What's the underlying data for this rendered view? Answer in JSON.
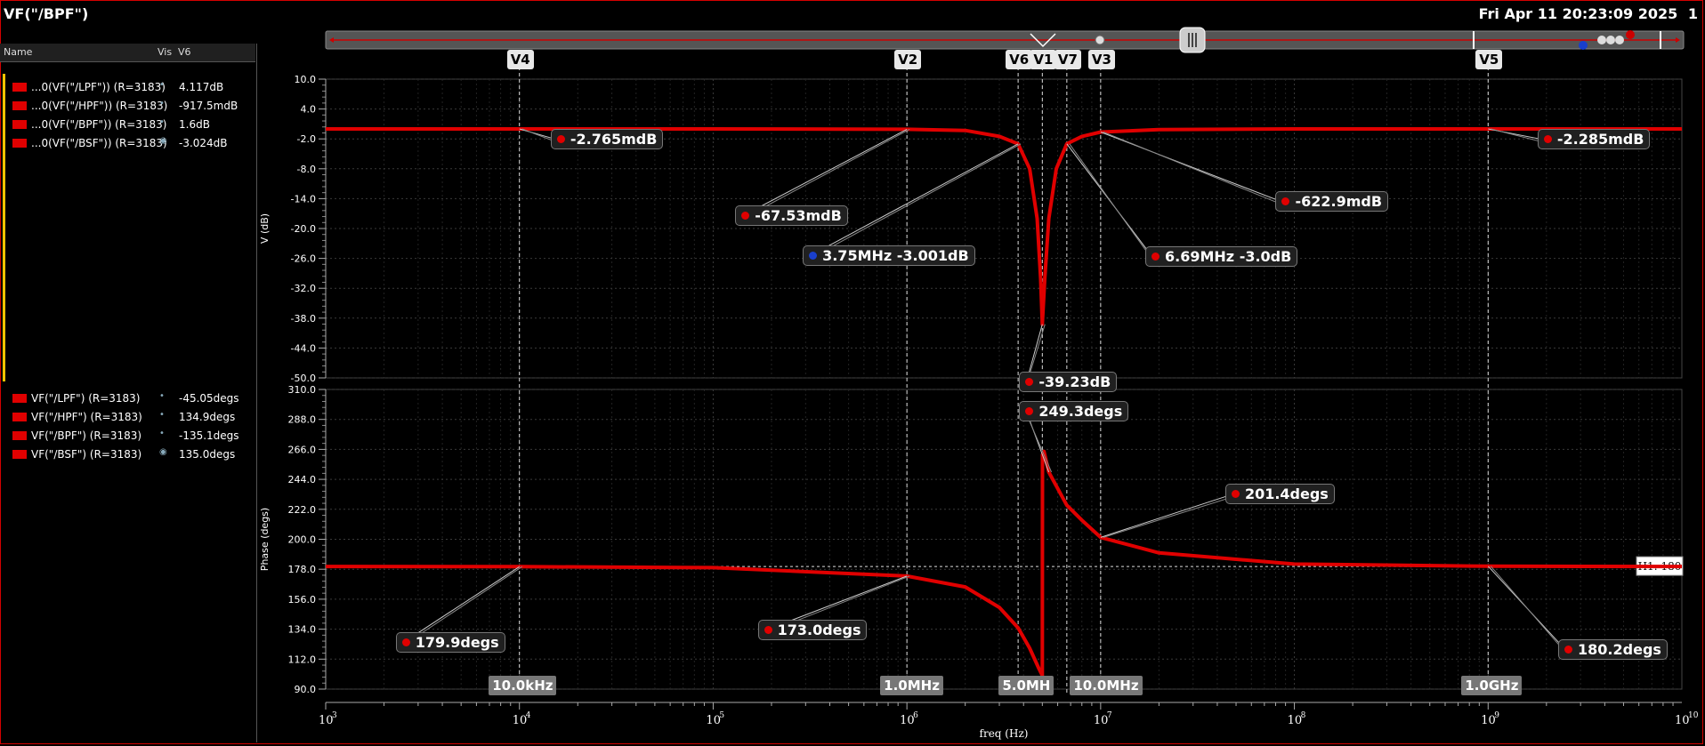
{
  "window": {
    "title": "VF(\"/BPF\")",
    "datetime": "Fri Apr 11 20:23:09 2025",
    "index": "1"
  },
  "legend": {
    "headers": {
      "name": "Name",
      "vis": "Vis",
      "value": "V6"
    },
    "magnitude": [
      {
        "name": "...0(VF(\"/LPF\")) (R=3183)",
        "value": "4.117dB",
        "visible": false
      },
      {
        "name": "...0(VF(\"/HPF\")) (R=3183)",
        "value": "-917.5mdB",
        "visible": false
      },
      {
        "name": "...0(VF(\"/BPF\")) (R=3183)",
        "value": "1.6dB",
        "visible": false
      },
      {
        "name": "...0(VF(\"/BSF\")) (R=3183)",
        "value": "-3.024dB",
        "visible": true
      }
    ],
    "phase": [
      {
        "name": "VF(\"/LPF\") (R=3183)",
        "value": "-45.05degs",
        "visible": false
      },
      {
        "name": "VF(\"/HPF\") (R=3183)",
        "value": "134.9degs",
        "visible": false
      },
      {
        "name": "VF(\"/BPF\") (R=3183)",
        "value": "-135.1degs",
        "visible": false
      },
      {
        "name": "VF(\"/BSF\") (R=3183)",
        "value": "135.0degs",
        "visible": true
      }
    ]
  },
  "colors": {
    "trace": "#e00000",
    "background": "#000000",
    "grid": "#3a3a3a",
    "frame": "#d40000"
  },
  "chart_data": [
    {
      "type": "line",
      "series": [
        {
          "values": [
            [
              1000,
              -0.003
            ],
            [
              10000,
              -0.003
            ],
            [
              100000,
              -0.003
            ],
            [
              1000000,
              -0.068
            ],
            [
              2000000,
              -0.3
            ],
            [
              3000000,
              -1.5
            ],
            [
              3750000,
              -3.001
            ],
            [
              4300000,
              -8
            ],
            [
              4700000,
              -18
            ],
            [
              4900000,
              -30
            ],
            [
              5000000,
              -39.23
            ],
            [
              5150000,
              -30
            ],
            [
              5400000,
              -18
            ],
            [
              5900000,
              -8
            ],
            [
              6690000,
              -3.0
            ],
            [
              8000000,
              -1.5
            ],
            [
              10000000,
              -0.623
            ],
            [
              20000000,
              -0.15
            ],
            [
              100000000,
              -0.003
            ],
            [
              1000000000,
              -0.002
            ],
            [
              10000000000,
              -0.002
            ]
          ]
        }
      ],
      "xlabel": "freq (Hz)",
      "ylabel": "V (dB)",
      "xscale": "log",
      "xlim": [
        1000,
        10000000000
      ],
      "ylim": [
        -50,
        10
      ],
      "yticks": [
        "10.0",
        "4.0",
        "-2.0",
        "-8.0",
        "-14.0",
        "-20.0",
        "-26.0",
        "-32.0",
        "-38.0",
        "-44.0",
        "-50.0"
      ],
      "grid": true
    },
    {
      "type": "line",
      "series": [
        {
          "values": [
            [
              1000,
              180
            ],
            [
              10000,
              179.9
            ],
            [
              100000,
              179.2
            ],
            [
              1000000,
              173.0
            ],
            [
              2000000,
              165
            ],
            [
              3000000,
              150
            ],
            [
              3750000,
              135
            ],
            [
              4300000,
              120
            ],
            [
              4800000,
              105
            ],
            [
              5000000,
              100
            ],
            [
              5010000,
              262
            ],
            [
              5100000,
              264.5
            ],
            [
              5400000,
              249.3
            ],
            [
              6690000,
              225
            ],
            [
              8000000,
              214
            ],
            [
              10000000,
              201.4
            ],
            [
              20000000,
              190
            ],
            [
              100000000,
              181.8
            ],
            [
              1000000000,
              180.2
            ],
            [
              10000000000,
              180
            ]
          ]
        }
      ],
      "xlabel": "freq (Hz)",
      "ylabel": "Phase (degs)",
      "xscale": "log",
      "xlim": [
        1000,
        10000000000
      ],
      "ylim": [
        90,
        310
      ],
      "yticks": [
        "310.0",
        "288.0",
        "266.0",
        "244.0",
        "222.0",
        "200.0",
        "178.0",
        "156.0",
        "134.0",
        "112.0",
        "90.0"
      ],
      "grid": true,
      "hline": {
        "label": "H1: 180",
        "value": 180
      }
    }
  ],
  "xaxis": {
    "tick_labels": [
      {
        "base": "10",
        "exp": "3",
        "x": 1000
      },
      {
        "base": "10",
        "exp": "4",
        "x": 10000
      },
      {
        "base": "10",
        "exp": "5",
        "x": 100000
      },
      {
        "base": "10",
        "exp": "6",
        "x": 1000000
      },
      {
        "base": "10",
        "exp": "7",
        "x": 10000000
      },
      {
        "base": "10",
        "exp": "8",
        "x": 100000000
      },
      {
        "base": "10",
        "exp": "9",
        "x": 1000000000
      },
      {
        "base": "10",
        "exp": "10",
        "x": 10000000000
      }
    ],
    "freq_tags": [
      {
        "text": "10.0kHz",
        "x": 10000
      },
      {
        "text": "1.0MHz",
        "x": 1000000
      },
      {
        "text": "5.0MH",
        "x": 5000000
      },
      {
        "text": "10.0MHz",
        "x": 10000000
      },
      {
        "text": "1.0GHz",
        "x": 1000000000
      }
    ]
  },
  "markers": [
    {
      "name": "V4",
      "x": 10000
    },
    {
      "name": "V2",
      "x": 1000000
    },
    {
      "name": "V6",
      "x": 3750000
    },
    {
      "name": "V1",
      "x": 5000000
    },
    {
      "name": "V7",
      "x": 6690000
    },
    {
      "name": "V3",
      "x": 10000000
    },
    {
      "name": "V5",
      "x": 1000000000
    }
  ],
  "annotations": {
    "magnitude": [
      {
        "text": "-2.765mdB",
        "x": 10000,
        "y": -0.003,
        "lx": 14500,
        "ly": -2.2,
        "dot": "red"
      },
      {
        "text": "-67.53mdB",
        "x": 1000000,
        "y": -0.068,
        "lx": 130000,
        "ly": -17.5,
        "dot": "red"
      },
      {
        "text": "3.75MHz -3.001dB",
        "x": 3750000,
        "y": -3.001,
        "lx": 290000,
        "ly": -25.5,
        "dot": "B"
      },
      {
        "text": "-39.23dB",
        "x": 5000000,
        "y": -39.23,
        "lx": 3800000,
        "ly": -50,
        "dot": "red",
        "pane": "phase-top"
      },
      {
        "text": "6.69MHz -3.0dB",
        "x": 6690000,
        "y": -3.0,
        "lx": 17000000,
        "ly": -25.7,
        "dot": "A"
      },
      {
        "text": "-622.9mdB",
        "x": 10000000,
        "y": -0.623,
        "lx": 80000000,
        "ly": -14.7,
        "dot": "red"
      },
      {
        "text": "-2.285mdB",
        "x": 1000000000,
        "y": -0.002,
        "lx": 1800000000,
        "ly": -2.2,
        "dot": "red"
      }
    ],
    "phase": [
      {
        "text": "179.9degs",
        "x": 10000,
        "y": 179.9,
        "lx": 2300,
        "ly": 124,
        "dot": "red"
      },
      {
        "text": "173.0degs",
        "x": 1000000,
        "y": 173.0,
        "lx": 170000,
        "ly": 133,
        "dot": "red"
      },
      {
        "text": "249.3degs",
        "x": 5400000,
        "y": 249.3,
        "lx": 3800000,
        "ly": 294,
        "dot": "red"
      },
      {
        "text": "201.4degs",
        "x": 10000000,
        "y": 201.4,
        "lx": 44000000,
        "ly": 233,
        "dot": "red"
      },
      {
        "text": "180.2degs",
        "x": 1000000000,
        "y": 180.2,
        "lx": 2300000000,
        "ly": 119,
        "dot": "red"
      }
    ]
  }
}
